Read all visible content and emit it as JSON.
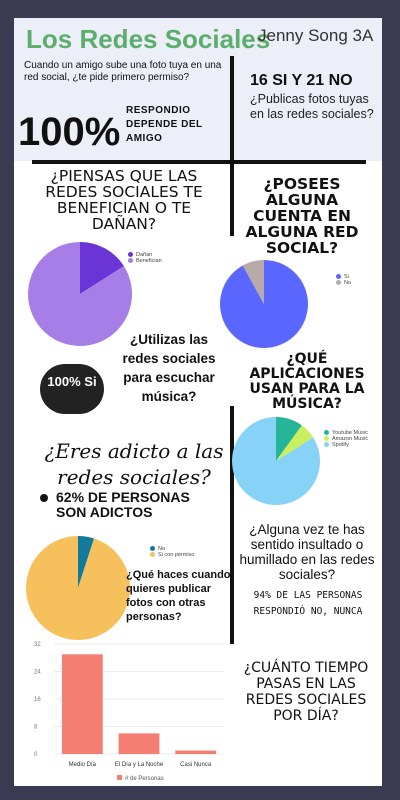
{
  "header": {
    "title": "Los Redes Sociales",
    "author": "Jenny Song 3A",
    "q1": "Cuando un amigo sube una foto tuya en una red social, ¿te pide primero permiso?",
    "q1_percent": "100%",
    "q1_answer": "RESPONDIO DEPENDE DEL AMIGO",
    "q2_result": "16 SI Y 21 NO",
    "q2_question": "¿Publicas fotos tuyas en las redes sociales?"
  },
  "sections": {
    "benefit_q": "¿PIENSAS QUE LAS REDES SOCIALES TE BENEFICIAN O TE DAÑAN?",
    "account_q": "¿POSEES ALGUNA CUENTA EN ALGUNA RED SOCIAL?",
    "music_q": "¿Utilizas las redes sociales para escuchar música?",
    "music_badge": "100% Si",
    "apps_q": "¿QUÉ APLICACIONES USAN PARA LA MÚSICA?",
    "addict_q": "¿Eres adicto a las redes sociales?",
    "addict_stat": "62% DE PERSONAS SON ADICTOS",
    "photos_q": "¿Qué haces cuando quieres publicar fotos con otras personas?",
    "insult_q": "¿Alguna vez te has sentido insultado o humillado en las redes sociales?",
    "insult_answer": "94% DE LAS PERSONAS RESPONDIÓ NO, NUNCA",
    "time_q": "¿CUÁNTO TIEMPO PASAS EN LAS REDES SOCIALES POR DÍA?"
  },
  "chart_data": [
    {
      "type": "pie",
      "categories": [
        "Dañan",
        "Benefician"
      ],
      "values": [
        16,
        84
      ],
      "colors": [
        "#6a34d6",
        "#a77ee8"
      ]
    },
    {
      "type": "pie",
      "categories": [
        "Si",
        "No"
      ],
      "values": [
        92,
        8
      ],
      "colors": [
        "#5b66ff",
        "#b8aaa8"
      ]
    },
    {
      "type": "pie",
      "categories": [
        "Youtube Music",
        "Amazon Music",
        "Spotify"
      ],
      "values": [
        10,
        6,
        84
      ],
      "colors": [
        "#27b59a",
        "#c9ef5e",
        "#87d3f7"
      ]
    },
    {
      "type": "pie",
      "categories": [
        "No",
        "Si con permiso"
      ],
      "values": [
        5,
        95
      ],
      "colors": [
        "#147a9c",
        "#f6c15c"
      ]
    },
    {
      "type": "bar",
      "categories": [
        "Medio Día",
        "El Día y La Noche",
        "Casi Nunca"
      ],
      "series": [
        {
          "name": "# de Personas",
          "values": [
            29,
            6,
            1
          ]
        }
      ],
      "yticks": [
        0,
        8,
        16,
        24,
        32
      ],
      "ylim": [
        0,
        32
      ],
      "color": "#f47e71",
      "grid": true,
      "legend": "bottom"
    }
  ]
}
